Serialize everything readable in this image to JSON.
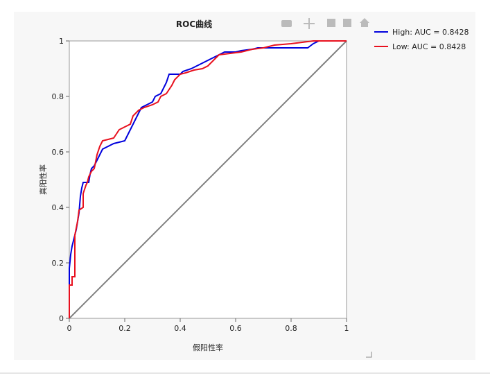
{
  "chart_data": {
    "type": "line",
    "title": "ROC曲线",
    "x_label": "假阳性率",
    "y_label": "真阳性率",
    "xlim": [
      0,
      1
    ],
    "ylim": [
      0,
      1
    ],
    "xticks": [
      0,
      0.2,
      0.4,
      0.6,
      0.8,
      1
    ],
    "yticks": [
      0,
      0.2,
      0.4,
      0.6,
      0.8,
      1
    ],
    "legend": "outside-right-top",
    "reference_line": {
      "x": [
        0,
        1
      ],
      "values": [
        0,
        1
      ],
      "color": "#808080"
    },
    "series": [
      {
        "name": "High: AUC = 0.8428",
        "color": "#0000dd",
        "x": [
          0,
          0,
          0.005,
          0.01,
          0.015,
          0.02,
          0.025,
          0.035,
          0.04,
          0.045,
          0.05,
          0.07,
          0.075,
          0.08,
          0.09,
          0.1,
          0.11,
          0.12,
          0.14,
          0.16,
          0.2,
          0.21,
          0.22,
          0.24,
          0.25,
          0.26,
          0.28,
          0.3,
          0.31,
          0.33,
          0.34,
          0.35,
          0.36,
          0.4,
          0.41,
          0.44,
          0.46,
          0.48,
          0.5,
          0.52,
          0.54,
          0.56,
          0.6,
          0.62,
          0.66,
          0.68,
          0.86,
          0.88,
          0.9,
          1
        ],
        "values": [
          0,
          0.18,
          0.23,
          0.26,
          0.28,
          0.3,
          0.32,
          0.38,
          0.44,
          0.47,
          0.49,
          0.49,
          0.52,
          0.54,
          0.55,
          0.57,
          0.59,
          0.61,
          0.62,
          0.63,
          0.64,
          0.66,
          0.68,
          0.72,
          0.74,
          0.76,
          0.77,
          0.78,
          0.8,
          0.81,
          0.83,
          0.85,
          0.88,
          0.88,
          0.89,
          0.9,
          0.91,
          0.92,
          0.93,
          0.94,
          0.95,
          0.96,
          0.96,
          0.965,
          0.97,
          0.975,
          0.975,
          0.99,
          1,
          1
        ]
      },
      {
        "name": "Low: AUC = 0.8428",
        "color": "#e8101e",
        "x": [
          0,
          0,
          0.01,
          0.01,
          0.02,
          0.02,
          0.03,
          0.035,
          0.05,
          0.05,
          0.06,
          0.065,
          0.07,
          0.08,
          0.09,
          0.1,
          0.11,
          0.12,
          0.14,
          0.16,
          0.18,
          0.2,
          0.22,
          0.23,
          0.25,
          0.27,
          0.3,
          0.32,
          0.33,
          0.35,
          0.37,
          0.38,
          0.4,
          0.42,
          0.45,
          0.48,
          0.5,
          0.52,
          0.54,
          0.58,
          0.62,
          0.66,
          0.7,
          0.74,
          0.8,
          0.84,
          0.88,
          1
        ],
        "values": [
          0,
          0.12,
          0.12,
          0.15,
          0.15,
          0.3,
          0.35,
          0.39,
          0.4,
          0.45,
          0.48,
          0.49,
          0.51,
          0.53,
          0.54,
          0.59,
          0.62,
          0.64,
          0.645,
          0.65,
          0.68,
          0.69,
          0.7,
          0.73,
          0.75,
          0.76,
          0.77,
          0.78,
          0.8,
          0.81,
          0.84,
          0.86,
          0.88,
          0.885,
          0.895,
          0.9,
          0.91,
          0.93,
          0.95,
          0.955,
          0.96,
          0.97,
          0.975,
          0.985,
          0.99,
          0.995,
          1,
          1
        ]
      }
    ]
  }
}
